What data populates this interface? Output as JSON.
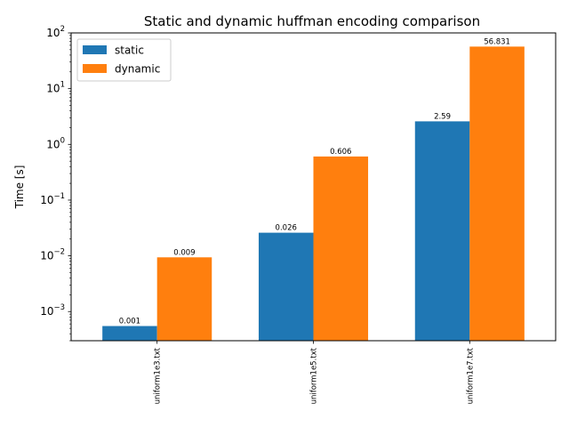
{
  "chart_data": {
    "type": "bar",
    "title": "Static and dynamic huffman encoding comparison",
    "xlabel": "",
    "ylabel": "Time [s]",
    "yscale": "log",
    "ylim": [
      0.0003,
      100
    ],
    "yticks": [
      {
        "base": "10",
        "exp": "−3",
        "value": 0.001
      },
      {
        "base": "10",
        "exp": "−2",
        "value": 0.01
      },
      {
        "base": "10",
        "exp": "−1",
        "value": 0.1
      },
      {
        "base": "10",
        "exp": "0",
        "value": 1
      },
      {
        "base": "10",
        "exp": "1",
        "value": 10
      },
      {
        "base": "10",
        "exp": "2",
        "value": 100
      }
    ],
    "categories": [
      "uniform1e3.txt",
      "uniform1e5.txt",
      "uniform1e7.txt"
    ],
    "series": [
      {
        "name": "static",
        "color": "#1f77b4",
        "values": [
          0.00055,
          0.026,
          2.59
        ],
        "labels": [
          "0.001",
          "0.026",
          "2.59"
        ]
      },
      {
        "name": "dynamic",
        "color": "#ff7f0e",
        "values": [
          0.0094,
          0.606,
          56.831
        ],
        "labels": [
          "0.009",
          "0.606",
          "56.831"
        ]
      }
    ],
    "legend": "upper-left",
    "grid": false
  }
}
